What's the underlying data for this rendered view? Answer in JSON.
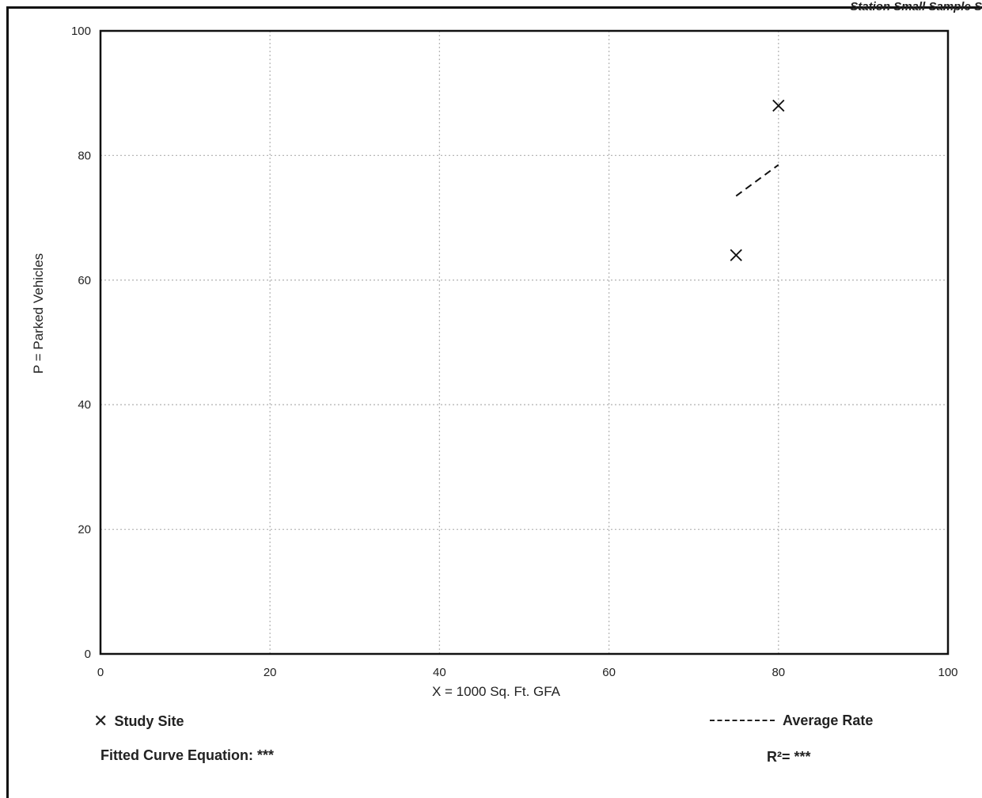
{
  "header": {
    "text": "Station   Small Sample Size"
  },
  "chart_data": {
    "type": "scatter",
    "title": "",
    "xlabel": "X = 1000 Sq. Ft. GFA",
    "ylabel": "P = Parked Vehicles",
    "xlim": [
      0,
      100
    ],
    "ylim": [
      0,
      100
    ],
    "x_ticks": [
      "0",
      "20",
      "40",
      "60",
      "80",
      "100"
    ],
    "y_ticks": [
      "0",
      "20",
      "40",
      "60",
      "80",
      "100"
    ],
    "grid": true,
    "series": [
      {
        "name": "Study Site",
        "marker": "x",
        "points": [
          {
            "x": 75,
            "y": 64
          },
          {
            "x": 80,
            "y": 88
          }
        ]
      }
    ],
    "average_rate_line": {
      "name": "Average Rate",
      "style": "dashed",
      "points": [
        {
          "x": 75,
          "y": 73.5
        },
        {
          "x": 80,
          "y": 78.5
        }
      ]
    }
  },
  "legend": {
    "study_site": "Study Site",
    "average_rate": "Average Rate",
    "study_site_symbol": "✕"
  },
  "footer": {
    "fitted_curve": "Fitted Curve Equation: ***",
    "r_squared": "R²= ***"
  }
}
